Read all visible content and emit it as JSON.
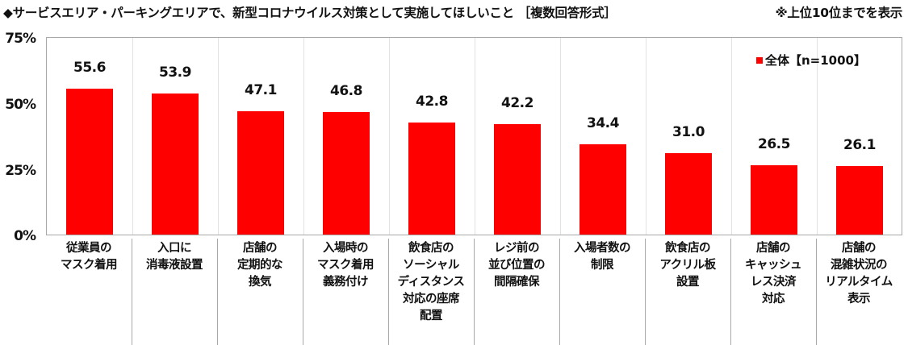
{
  "header": {
    "title": "◆サービスエリア・パーキングエリアで、新型コロナウイルス対策として実施してほしいこと ［複数回答形式］",
    "note": "※上位10位までを表示"
  },
  "legend": {
    "label": "全体【n=1000】",
    "color": "#ff0000"
  },
  "yaxis": {
    "ticks": [
      "75%",
      "50%",
      "25%",
      "0%"
    ]
  },
  "chart_data": {
    "type": "bar",
    "title": "◆サービスエリア・パーキングエリアで、新型コロナウイルス対策として実施してほしいこと ［複数回答形式］ ※上位10位までを表示",
    "xlabel": "",
    "ylabel": "",
    "ylim": [
      0,
      75
    ],
    "yticks": [
      0,
      25,
      50,
      75
    ],
    "ytick_labels": [
      "0%",
      "25%",
      "50%",
      "75%"
    ],
    "grid": false,
    "legend_position": "top-right inside",
    "categories": [
      "従業員のマスク着用",
      "入口に消毒液設置",
      "店舗の定期的な換気",
      "入場時のマスク着用義務付け",
      "飲食店のソーシャルディスタンス対応の座席配置",
      "レジ前の並び位置の間隔確保",
      "入場者数の制限",
      "飲食店のアクリル板設置",
      "店舗のキャッシュレス決済対応",
      "店舗の混雑状況のリアルタイム表示"
    ],
    "series": [
      {
        "name": "全体【n=1000】",
        "color": "#ff0000",
        "values": [
          55.6,
          53.9,
          47.1,
          46.8,
          42.8,
          42.2,
          34.4,
          31.0,
          26.5,
          26.1
        ]
      }
    ]
  },
  "bars": [
    {
      "label": "従業員の\nマスク着用",
      "value": "55.6",
      "pct": 55.6
    },
    {
      "label": "入口に\n消毒液設置",
      "value": "53.9",
      "pct": 53.9
    },
    {
      "label": "店舗の\n定期的な\n換気",
      "value": "47.1",
      "pct": 47.1
    },
    {
      "label": "入場時の\nマスク着用\n義務付け",
      "value": "46.8",
      "pct": 46.8
    },
    {
      "label": "飲食店の\nソーシャル\nディスタンス\n対応の座席\n配置",
      "value": "42.8",
      "pct": 42.8
    },
    {
      "label": "レジ前の\n並び位置の\n間隔確保",
      "value": "42.2",
      "pct": 42.2
    },
    {
      "label": "入場者数の\n制限",
      "value": "34.4",
      "pct": 34.4
    },
    {
      "label": "飲食店の\nアクリル板\n設置",
      "value": "31.0",
      "pct": 31.0
    },
    {
      "label": "店舗の\nキャッシュ\nレス決済\n対応",
      "value": "26.5",
      "pct": 26.5
    },
    {
      "label": "店舗の\n混雑状況の\nリアルタイム\n表示",
      "value": "26.1",
      "pct": 26.1
    }
  ]
}
